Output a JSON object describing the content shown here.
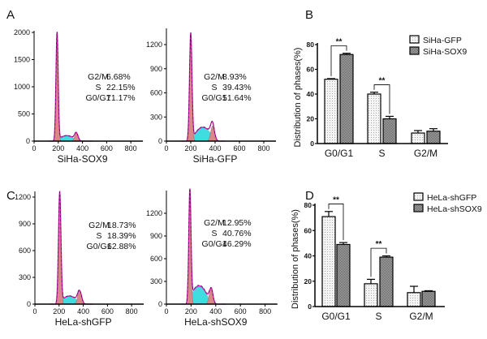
{
  "panel_labels": [
    "A",
    "B",
    "C",
    "D"
  ],
  "chart_data": [
    {
      "type": "histogram",
      "panel": "A",
      "xlabel": "SiHa-SOX9",
      "xticks": [
        0,
        200,
        400,
        600,
        800
      ],
      "yticks": [
        0,
        500,
        1000,
        1500,
        2000
      ],
      "phases": [
        {
          "label": "G2/M",
          "value": "6.68%"
        },
        {
          "label": "S",
          "value": "22.15%"
        },
        {
          "label": "G0/G1",
          "value": "71.17%"
        }
      ],
      "colors": {
        "g1_g2_fill": "#d98888",
        "s_fill": "#40dde0",
        "fit_line": "#e010c0"
      }
    },
    {
      "type": "histogram",
      "panel": "A",
      "xlabel": "SiHa-GFP",
      "xticks": [
        0,
        200,
        400,
        600,
        800
      ],
      "yticks": [
        0,
        300,
        600,
        900,
        1200
      ],
      "phases": [
        {
          "label": "G2/M",
          "value": "8.93%"
        },
        {
          "label": "S",
          "value": "39.43%"
        },
        {
          "label": "G0/G1",
          "value": "51.64%"
        }
      ]
    },
    {
      "type": "bar",
      "panel": "B",
      "ylabel": "Distribution of phases(%)",
      "categories": [
        "G0/G1",
        "S",
        "G2/M"
      ],
      "ylim": [
        0,
        80
      ],
      "yticks": [
        0,
        20,
        40,
        60,
        80
      ],
      "series": [
        {
          "name": "SiHa-GFP",
          "values": [
            52,
            40,
            8.5
          ],
          "errors": [
            0.5,
            1.5,
            2
          ]
        },
        {
          "name": "SiHa-SOX9",
          "values": [
            72,
            20,
            10
          ],
          "errors": [
            1,
            2,
            2
          ]
        }
      ],
      "significance": [
        {
          "category": "G0/G1",
          "label": "**"
        },
        {
          "category": "S",
          "label": "**"
        }
      ],
      "legend": "top-right"
    },
    {
      "type": "histogram",
      "panel": "C",
      "xlabel": "HeLa-shGFP",
      "xticks": [
        0,
        200,
        400,
        600,
        800
      ],
      "yticks": [
        0,
        300,
        600,
        900,
        1200
      ],
      "phases": [
        {
          "label": "G2/M",
          "value": "18.73%"
        },
        {
          "label": "S",
          "value": "18.39%"
        },
        {
          "label": "G0/G1",
          "value": "62.88%"
        }
      ]
    },
    {
      "type": "histogram",
      "panel": "C",
      "xlabel": "HeLa-shSOX9",
      "xticks": [
        0,
        200,
        400,
        600,
        800
      ],
      "yticks": [
        0,
        300,
        600,
        900,
        1200
      ],
      "phases": [
        {
          "label": "G2/M",
          "value": "12.95%"
        },
        {
          "label": "S",
          "value": "40.76%"
        },
        {
          "label": "G0/G1",
          "value": "46.29%"
        }
      ]
    },
    {
      "type": "bar",
      "panel": "D",
      "ylabel": "Distribution of phases(%)",
      "categories": [
        "G0/G1",
        "S",
        "G2/M"
      ],
      "ylim": [
        0,
        80
      ],
      "yticks": [
        0,
        20,
        40,
        60,
        80
      ],
      "series": [
        {
          "name": "HeLa-shGFP",
          "values": [
            71,
            18,
            11
          ],
          "errors": [
            4,
            3.5,
            5
          ]
        },
        {
          "name": "HeLa-shSOX9",
          "values": [
            49,
            39,
            12
          ],
          "errors": [
            1.5,
            1,
            0.5
          ]
        }
      ],
      "significance": [
        {
          "category": "G0/G1",
          "label": "**"
        },
        {
          "category": "S",
          "label": "**"
        }
      ],
      "legend": "top-right"
    }
  ]
}
